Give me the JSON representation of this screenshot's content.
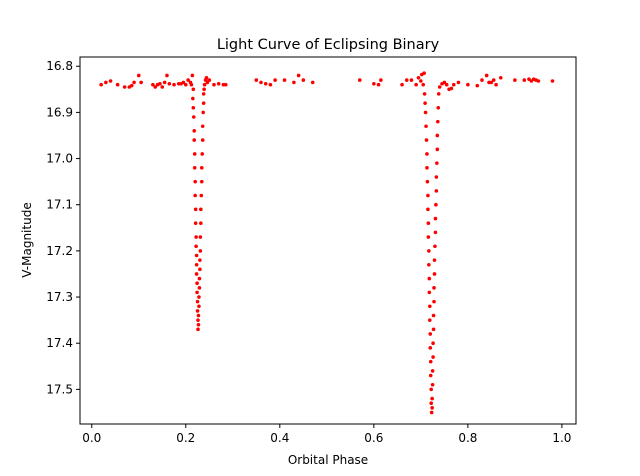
{
  "chart_data": {
    "type": "scatter",
    "title": "Light Curve of Eclipsing Binary",
    "xlabel": "Orbital Phase",
    "ylabel": "V-Magnitude",
    "xlim": [
      -0.025,
      1.03
    ],
    "ylim": [
      17.575,
      16.78
    ],
    "y_inverted": true,
    "grid": false,
    "marker_color": "#ff0000",
    "xticks": [
      0.0,
      0.2,
      0.4,
      0.6,
      0.8,
      1.0
    ],
    "xtick_labels": [
      "0.0",
      "0.2",
      "0.4",
      "0.6",
      "0.8",
      "1.0"
    ],
    "yticks": [
      16.8,
      16.9,
      17.0,
      17.1,
      17.2,
      17.3,
      17.4,
      17.5
    ],
    "ytick_labels": [
      "16.8",
      "16.9",
      "17.0",
      "17.1",
      "17.2",
      "17.3",
      "17.4",
      "17.5"
    ],
    "series": [
      {
        "color": "#ff0000",
        "points": [
          [
            0.02,
            16.84
          ],
          [
            0.03,
            16.835
          ],
          [
            0.04,
            16.832
          ],
          [
            0.055,
            16.84
          ],
          [
            0.07,
            16.845
          ],
          [
            0.08,
            16.845
          ],
          [
            0.085,
            16.842
          ],
          [
            0.09,
            16.835
          ],
          [
            0.1,
            16.82
          ],
          [
            0.105,
            16.835
          ],
          [
            0.13,
            16.84
          ],
          [
            0.135,
            16.845
          ],
          [
            0.14,
            16.84
          ],
          [
            0.145,
            16.838
          ],
          [
            0.15,
            16.845
          ],
          [
            0.155,
            16.835
          ],
          [
            0.16,
            16.82
          ],
          [
            0.165,
            16.838
          ],
          [
            0.175,
            16.84
          ],
          [
            0.185,
            16.838
          ],
          [
            0.19,
            16.838
          ],
          [
            0.195,
            16.835
          ],
          [
            0.2,
            16.84
          ],
          [
            0.205,
            16.83
          ],
          [
            0.21,
            16.835
          ],
          [
            0.212,
            16.84
          ],
          [
            0.214,
            16.82
          ],
          [
            0.216,
            16.85
          ],
          [
            0.215,
            16.87
          ],
          [
            0.216,
            16.89
          ],
          [
            0.217,
            16.91
          ],
          [
            0.218,
            16.94
          ],
          [
            0.218,
            16.96
          ],
          [
            0.219,
            16.99
          ],
          [
            0.219,
            17.02
          ],
          [
            0.22,
            17.05
          ],
          [
            0.22,
            17.08
          ],
          [
            0.221,
            17.11
          ],
          [
            0.221,
            17.14
          ],
          [
            0.222,
            17.17
          ],
          [
            0.222,
            17.19
          ],
          [
            0.223,
            17.21
          ],
          [
            0.223,
            17.23
          ],
          [
            0.223,
            17.25
          ],
          [
            0.224,
            17.27
          ],
          [
            0.224,
            17.29
          ],
          [
            0.225,
            17.31
          ],
          [
            0.225,
            17.33
          ],
          [
            0.226,
            17.35
          ],
          [
            0.226,
            17.37
          ],
          [
            0.227,
            17.36
          ],
          [
            0.227,
            17.34
          ],
          [
            0.228,
            17.32
          ],
          [
            0.228,
            17.3
          ],
          [
            0.229,
            17.28
          ],
          [
            0.229,
            17.26
          ],
          [
            0.23,
            17.24
          ],
          [
            0.23,
            17.22
          ],
          [
            0.231,
            17.2
          ],
          [
            0.231,
            17.17
          ],
          [
            0.232,
            17.14
          ],
          [
            0.232,
            17.11
          ],
          [
            0.233,
            17.08
          ],
          [
            0.234,
            17.05
          ],
          [
            0.234,
            17.02
          ],
          [
            0.235,
            16.99
          ],
          [
            0.236,
            16.96
          ],
          [
            0.236,
            16.93
          ],
          [
            0.237,
            16.9
          ],
          [
            0.238,
            16.88
          ],
          [
            0.238,
            16.86
          ],
          [
            0.239,
            16.85
          ],
          [
            0.24,
            16.84
          ],
          [
            0.242,
            16.83
          ],
          [
            0.244,
            16.825
          ],
          [
            0.246,
            16.835
          ],
          [
            0.25,
            16.83
          ],
          [
            0.26,
            16.84
          ],
          [
            0.27,
            16.838
          ],
          [
            0.28,
            16.84
          ],
          [
            0.285,
            16.84
          ],
          [
            0.35,
            16.83
          ],
          [
            0.36,
            16.835
          ],
          [
            0.37,
            16.838
          ],
          [
            0.38,
            16.84
          ],
          [
            0.39,
            16.83
          ],
          [
            0.41,
            16.83
          ],
          [
            0.43,
            16.835
          ],
          [
            0.44,
            16.82
          ],
          [
            0.45,
            16.83
          ],
          [
            0.47,
            16.835
          ],
          [
            0.57,
            16.83
          ],
          [
            0.6,
            16.838
          ],
          [
            0.61,
            16.84
          ],
          [
            0.615,
            16.83
          ],
          [
            0.66,
            16.84
          ],
          [
            0.67,
            16.83
          ],
          [
            0.68,
            16.83
          ],
          [
            0.69,
            16.84
          ],
          [
            0.695,
            16.825
          ],
          [
            0.7,
            16.832
          ],
          [
            0.702,
            16.818
          ],
          [
            0.705,
            16.84
          ],
          [
            0.707,
            16.815
          ],
          [
            0.708,
            16.86
          ],
          [
            0.709,
            16.88
          ],
          [
            0.71,
            16.9
          ],
          [
            0.711,
            16.93
          ],
          [
            0.712,
            16.96
          ],
          [
            0.713,
            16.99
          ],
          [
            0.713,
            17.02
          ],
          [
            0.714,
            17.05
          ],
          [
            0.715,
            17.08
          ],
          [
            0.715,
            17.11
          ],
          [
            0.716,
            17.14
          ],
          [
            0.716,
            17.17
          ],
          [
            0.717,
            17.2
          ],
          [
            0.717,
            17.23
          ],
          [
            0.718,
            17.26
          ],
          [
            0.718,
            17.29
          ],
          [
            0.719,
            17.32
          ],
          [
            0.719,
            17.35
          ],
          [
            0.72,
            17.38
          ],
          [
            0.72,
            17.41
          ],
          [
            0.721,
            17.44
          ],
          [
            0.721,
            17.47
          ],
          [
            0.722,
            17.5
          ],
          [
            0.722,
            17.53
          ],
          [
            0.723,
            17.55
          ],
          [
            0.724,
            17.54
          ],
          [
            0.724,
            17.52
          ],
          [
            0.725,
            17.49
          ],
          [
            0.725,
            17.46
          ],
          [
            0.726,
            17.43
          ],
          [
            0.726,
            17.4
          ],
          [
            0.727,
            17.37
          ],
          [
            0.727,
            17.34
          ],
          [
            0.728,
            17.31
          ],
          [
            0.728,
            17.28
          ],
          [
            0.729,
            17.25
          ],
          [
            0.729,
            17.22
          ],
          [
            0.73,
            17.19
          ],
          [
            0.731,
            17.16
          ],
          [
            0.731,
            17.13
          ],
          [
            0.732,
            17.1
          ],
          [
            0.733,
            17.07
          ],
          [
            0.733,
            17.04
          ],
          [
            0.734,
            17.01
          ],
          [
            0.735,
            16.98
          ],
          [
            0.735,
            16.95
          ],
          [
            0.736,
            16.92
          ],
          [
            0.737,
            16.89
          ],
          [
            0.738,
            16.86
          ],
          [
            0.74,
            16.845
          ],
          [
            0.745,
            16.838
          ],
          [
            0.75,
            16.835
          ],
          [
            0.755,
            16.84
          ],
          [
            0.76,
            16.85
          ],
          [
            0.765,
            16.848
          ],
          [
            0.77,
            16.84
          ],
          [
            0.78,
            16.835
          ],
          [
            0.8,
            16.84
          ],
          [
            0.82,
            16.842
          ],
          [
            0.83,
            16.83
          ],
          [
            0.84,
            16.82
          ],
          [
            0.845,
            16.835
          ],
          [
            0.85,
            16.835
          ],
          [
            0.855,
            16.83
          ],
          [
            0.86,
            16.84
          ],
          [
            0.87,
            16.825
          ],
          [
            0.9,
            16.83
          ],
          [
            0.92,
            16.83
          ],
          [
            0.93,
            16.828
          ],
          [
            0.935,
            16.832
          ],
          [
            0.94,
            16.828
          ],
          [
            0.945,
            16.83
          ],
          [
            0.95,
            16.832
          ],
          [
            0.98,
            16.832
          ]
        ]
      }
    ]
  }
}
